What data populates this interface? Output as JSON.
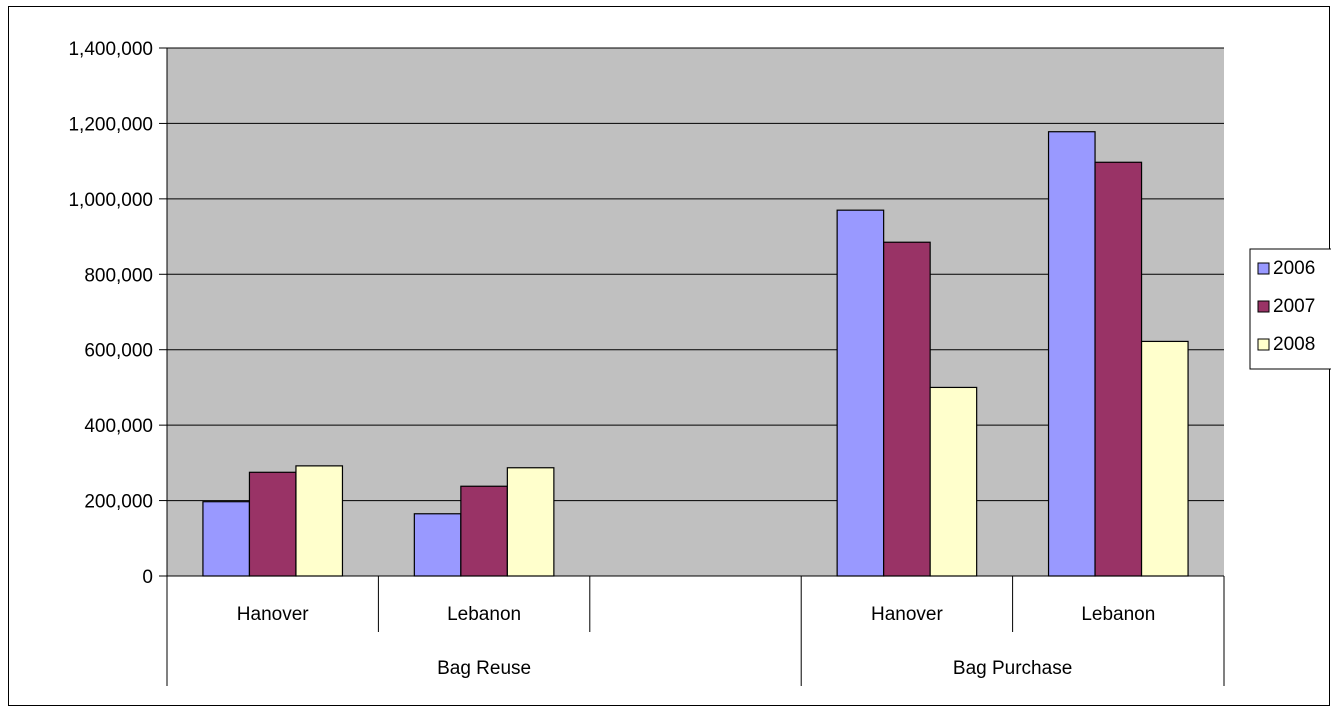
{
  "chart_data": {
    "type": "bar",
    "title": "",
    "xlabel": "",
    "ylabel": "",
    "ylim": [
      0,
      1400000
    ],
    "y_ticks": [
      "0",
      "200,000",
      "400,000",
      "600,000",
      "800,000",
      "1,000,000",
      "1,200,000",
      "1,400,000"
    ],
    "y_tick_values": [
      0,
      200000,
      400000,
      600000,
      800000,
      1000000,
      1200000,
      1400000
    ],
    "groups": [
      {
        "label": "Bag Reuse",
        "categories": [
          "Hanover",
          "Lebanon",
          ""
        ]
      },
      {
        "label": "Bag Purchase",
        "categories": [
          "Hanover",
          "Lebanon"
        ]
      }
    ],
    "categories": [
      "Hanover",
      "Lebanon",
      "",
      "Hanover",
      "Lebanon"
    ],
    "series": [
      {
        "name": "2006",
        "color": "#9999ff",
        "values": [
          197000,
          165000,
          null,
          970000,
          1178000
        ]
      },
      {
        "name": "2007",
        "color": "#993366",
        "values": [
          275000,
          238000,
          null,
          885000,
          1097000
        ]
      },
      {
        "name": "2008",
        "color": "#ffffcc",
        "values": [
          292000,
          287000,
          null,
          500000,
          622000
        ]
      }
    ],
    "plot_background": "#c0c0c0",
    "grid": true,
    "legend_position": "right"
  }
}
